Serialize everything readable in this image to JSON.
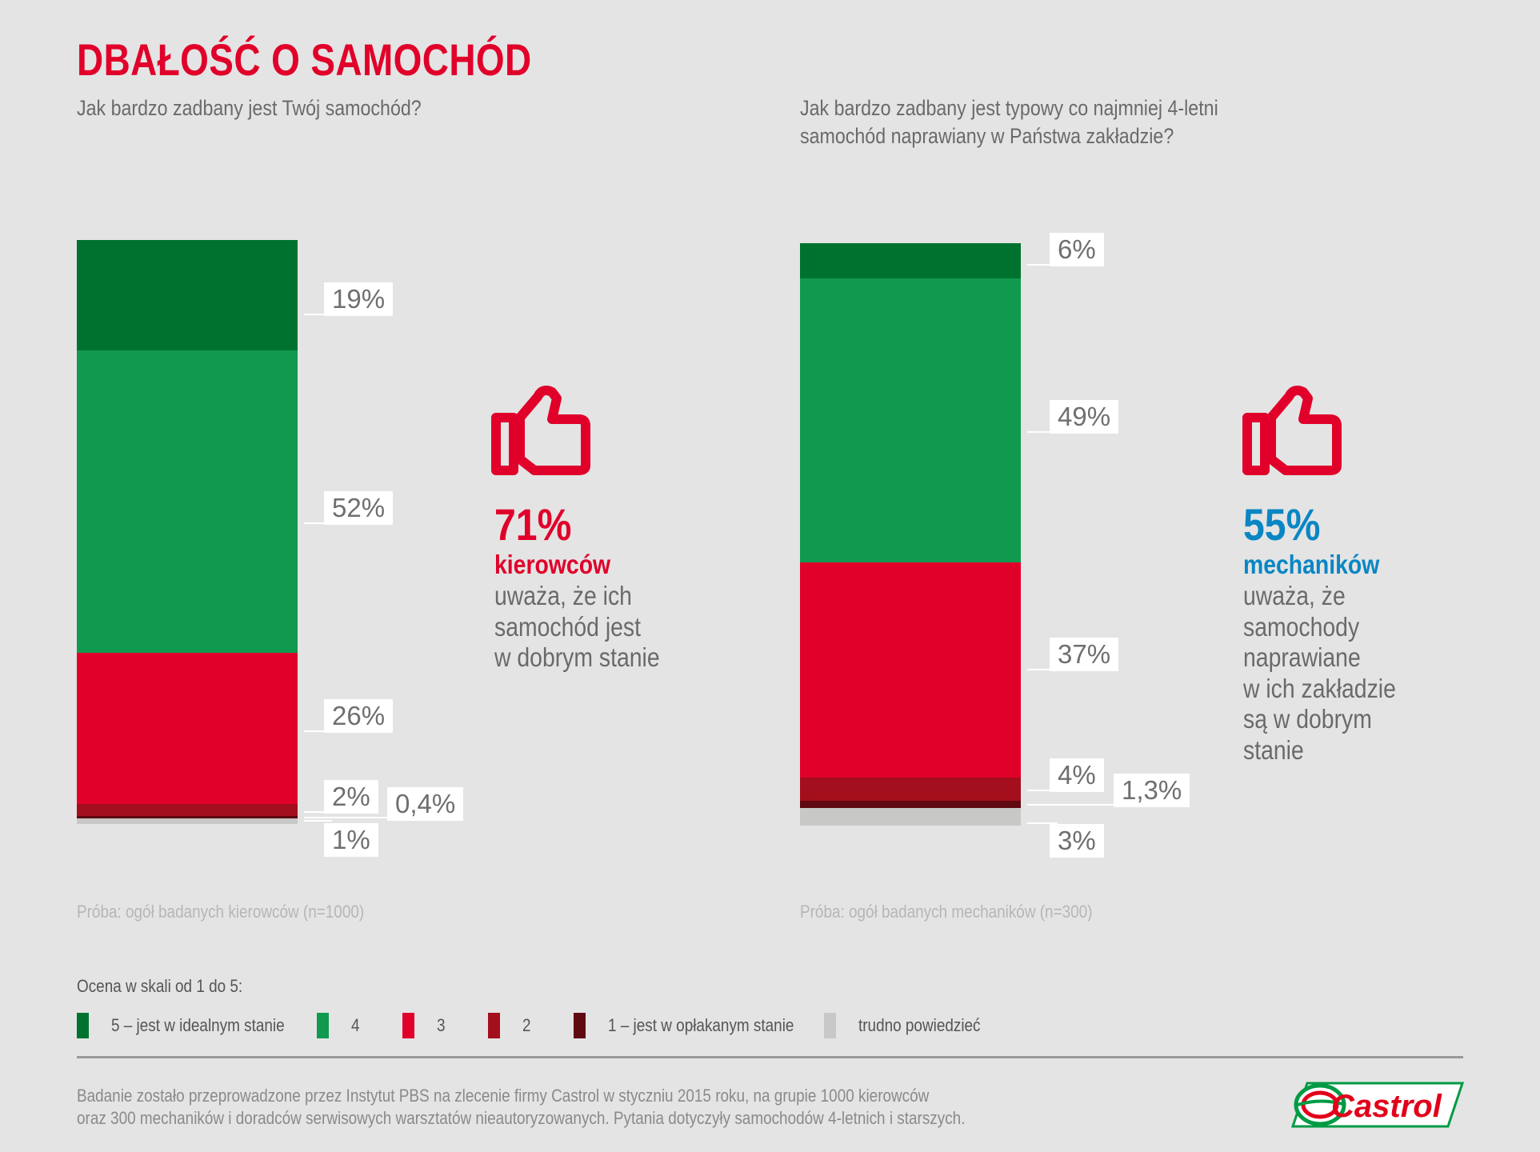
{
  "title": "DBAŁOŚĆ O SAMOCHÓD",
  "colors": {
    "rating5": "#00722f",
    "rating4": "#109a4f",
    "rating3": "#e0002a",
    "rating2": "#a30f1c",
    "rating1": "#5e0a10",
    "unknown": "#c8c8c6",
    "accent_red": "#e0002a",
    "accent_blue": "#0a86c4",
    "logo_green": "#009a44",
    "logo_red": "#e2001a"
  },
  "chart_data": [
    {
      "type": "bar",
      "stacked": true,
      "title": "Jak bardzo zadbany jest Twój samochód?",
      "ylim": [
        0,
        100
      ],
      "unit": "%",
      "segments": [
        {
          "name": "5 – jest w idealnym stanie",
          "key": "rating5",
          "value": 19,
          "label": "19%"
        },
        {
          "name": "4",
          "key": "rating4",
          "value": 52,
          "label": "52%"
        },
        {
          "name": "3",
          "key": "rating3",
          "value": 26,
          "label": "26%"
        },
        {
          "name": "2",
          "key": "rating2",
          "value": 2,
          "label": "2%"
        },
        {
          "name": "1 – jest w opłakanym stanie",
          "key": "rating1",
          "value": 0.4,
          "label": "0,4%"
        },
        {
          "name": "trudno powiedzieć",
          "key": "unknown",
          "value": 1,
          "label": "1%"
        }
      ],
      "sample": "Próba: ogół badanych kierowców (n=1000)"
    },
    {
      "type": "bar",
      "stacked": true,
      "title": "Jak bardzo zadbany jest typowy co najmniej 4-letni samochód naprawiany w Państwa zakładzie?",
      "ylim": [
        0,
        100
      ],
      "unit": "%",
      "segments": [
        {
          "name": "5 – jest w idealnym stanie",
          "key": "rating5",
          "value": 6,
          "label": "6%"
        },
        {
          "name": "4",
          "key": "rating4",
          "value": 49,
          "label": "49%"
        },
        {
          "name": "3",
          "key": "rating3",
          "value": 37,
          "label": "37%"
        },
        {
          "name": "2",
          "key": "rating2",
          "value": 4,
          "label": "4%"
        },
        {
          "name": "1 – jest w opłakanym stanie",
          "key": "rating1",
          "value": 1.3,
          "label": "1,3%"
        },
        {
          "name": "trudno powiedzieć",
          "key": "unknown",
          "value": 3,
          "label": "3%"
        }
      ],
      "sample": "Próba: ogół badanych mechaników (n=300)"
    }
  ],
  "questions": {
    "left": [
      "Jak bardzo zadbany jest Twój samochód?"
    ],
    "right": [
      "Jak bardzo zadbany jest typowy co najmniej 4-letni",
      "samochód naprawiany w Państwa zakładzie?"
    ]
  },
  "callouts": {
    "left": {
      "pct": "71%",
      "who": "kierowców",
      "lines": [
        "uważa, że ich",
        "samochód jest",
        "w dobrym stanie"
      ]
    },
    "right": {
      "pct": "55%",
      "who": "mechaników",
      "lines": [
        "uważa, że",
        "samochody",
        "naprawiane",
        "w ich zakładzie",
        "są w dobrym",
        "stanie"
      ]
    }
  },
  "legend": {
    "title": "Ocena w skali od 1 do 5:",
    "items": [
      {
        "key": "rating5",
        "label": "5 – jest w idealnym stanie"
      },
      {
        "key": "rating4",
        "label": "4"
      },
      {
        "key": "rating3",
        "label": "3"
      },
      {
        "key": "rating2",
        "label": "2"
      },
      {
        "key": "rating1",
        "label": "1 – jest w opłakanym stanie"
      },
      {
        "key": "unknown",
        "label": "trudno powiedzieć"
      }
    ]
  },
  "footnote": [
    "Badanie zostało przeprowadzone przez Instytut PBS na zlecenie firmy Castrol w styczniu 2015 roku, na grupie 1000 kierowców",
    "oraz 300 mechaników i doradców serwisowych warsztatów nieautoryzowanych. Pytania dotyczyły samochodów 4-letnich i starszych."
  ],
  "logo": {
    "text": "Castrol",
    "icon": "castrol-logo-icon"
  }
}
